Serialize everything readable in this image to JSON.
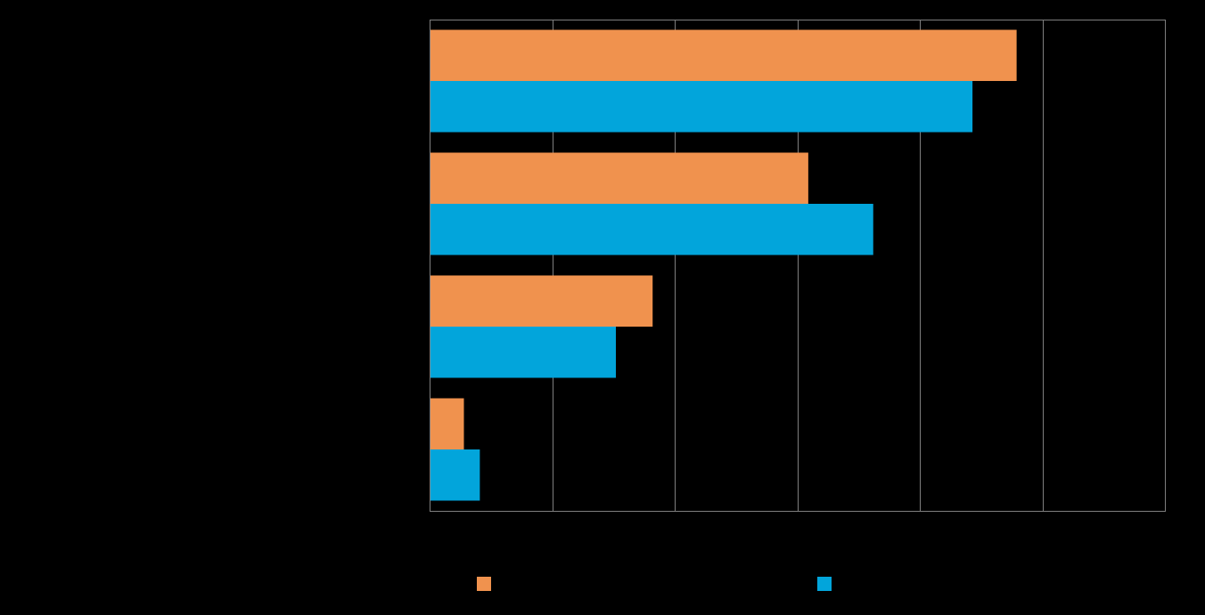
{
  "chart_data": {
    "type": "bar",
    "orientation": "horizontal",
    "title": "",
    "xlabel": "",
    "ylabel": "",
    "categories": [
      "",
      "",
      "",
      ""
    ],
    "xlim": [
      0,
      6
    ],
    "grid": true,
    "legend_position": "bottom",
    "series": [
      {
        "name": "",
        "color": "#F0924E",
        "values": [
          4.79,
          3.09,
          1.82,
          0.28
        ]
      },
      {
        "name": "",
        "color": "#02A5DB",
        "values": [
          4.43,
          3.62,
          1.52,
          0.41
        ]
      }
    ]
  },
  "colors": {
    "background": "#000000",
    "gridline": "#7F7F7F",
    "series_1": "#F0924E",
    "series_2": "#02A5DB"
  }
}
